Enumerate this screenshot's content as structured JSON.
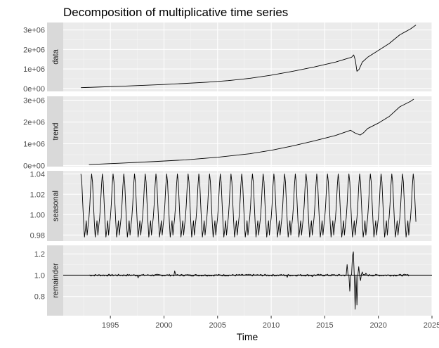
{
  "chart_data": {
    "type": "line",
    "title": "Decomposition of multiplicative time series",
    "xlabel": "Time",
    "xlim": [
      1990.6,
      2025.0
    ],
    "xticks": [
      1995,
      2000,
      2005,
      2010,
      2015,
      2020,
      2025
    ],
    "x_tick_labels": [
      "1995",
      "2000",
      "2005",
      "2010",
      "2015",
      "2020",
      "2025"
    ],
    "background": "#ebebeb",
    "grid": true,
    "strip_fill": "#d9d9d9",
    "line_color": "#000000",
    "panels": [
      {
        "name": "data",
        "ylim": [
          -150000,
          3380000
        ],
        "yticks": [
          0,
          1000000,
          2000000,
          3000000
        ],
        "ytick_labels": [
          "0e+00",
          "1e+06",
          "2e+06",
          "3e+06"
        ],
        "series": {
          "x": [
            1992.25,
            1994,
            1996,
            1998,
            2000,
            2002,
            2004,
            2006,
            2008,
            2010,
            2012,
            2014,
            2016,
            2017,
            2017.5,
            2017.7,
            2017.85,
            2018.0,
            2018.2,
            2018.5,
            2019,
            2020,
            2021,
            2022,
            2022.5,
            2023,
            2023.5
          ],
          "y": [
            40000,
            75000,
            115000,
            160000,
            205000,
            260000,
            320000,
            400000,
            520000,
            680000,
            880000,
            1100000,
            1350000,
            1520000,
            1600000,
            1720000,
            1450000,
            880000,
            980000,
            1350000,
            1600000,
            1950000,
            2300000,
            2750000,
            2900000,
            3050000,
            3250000
          ]
        }
      },
      {
        "name": "trend",
        "ylim": [
          -50000,
          3180000
        ],
        "yticks": [
          0,
          1000000,
          2000000,
          3000000
        ],
        "ytick_labels": [
          "0e+00",
          "1e+06",
          "2e+06",
          "3e+06"
        ],
        "series": {
          "x": [
            1993.0,
            1996,
            1999,
            2002,
            2005,
            2008,
            2010,
            2012,
            2014,
            2016,
            2017,
            2017.4,
            2017.8,
            2018.3,
            2018.6,
            2019,
            2020,
            2021,
            2022,
            2023,
            2023.3
          ],
          "y": [
            45000,
            110000,
            180000,
            260000,
            380000,
            540000,
            700000,
            900000,
            1130000,
            1380000,
            1550000,
            1620000,
            1500000,
            1400000,
            1500000,
            1700000,
            1950000,
            2250000,
            2700000,
            2950000,
            3050000
          ]
        }
      },
      {
        "name": "seasonal",
        "ylim": [
          0.974,
          1.043
        ],
        "yticks": [
          0.98,
          1.0,
          1.02,
          1.04
        ],
        "ytick_labels": [
          "0.98",
          "1.00",
          "1.02",
          "1.04"
        ],
        "period_start": 1992.25,
        "period_end": 2023.5,
        "pattern": [
          1.04,
          1.032,
          1.012,
          0.993,
          0.978,
          0.985,
          0.994,
          0.98,
          0.989,
          0.997,
          1.01,
          1.028
        ]
      },
      {
        "name": "remainder",
        "ylim": [
          0.62,
          1.28
        ],
        "yticks": [
          0.8,
          1.0,
          1.2
        ],
        "ytick_labels": [
          "0.8",
          "1.0",
          "1.2"
        ],
        "reference_line": 1.0,
        "series_start": 1993.0,
        "series_end": 2022.9,
        "spikes": [
          {
            "x": 2001.0,
            "y": 1.04
          },
          {
            "x": 1997.6,
            "y": 0.975
          },
          {
            "x": 2011.5,
            "y": 0.98
          },
          {
            "x": 2013.8,
            "y": 0.985
          },
          {
            "x": 2017.1,
            "y": 1.1
          },
          {
            "x": 2017.35,
            "y": 0.85
          },
          {
            "x": 2017.55,
            "y": 1.18
          },
          {
            "x": 2017.7,
            "y": 1.22
          },
          {
            "x": 2017.85,
            "y": 0.68
          },
          {
            "x": 2018.0,
            "y": 0.72
          },
          {
            "x": 2018.15,
            "y": 1.08
          },
          {
            "x": 2018.3,
            "y": 0.95
          },
          {
            "x": 2018.5,
            "y": 1.03
          },
          {
            "x": 2018.8,
            "y": 1.02
          }
        ]
      }
    ]
  }
}
